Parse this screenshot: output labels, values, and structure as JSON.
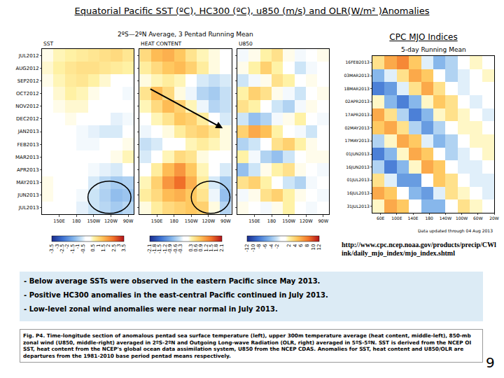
{
  "title": "Equatorial Pacific SST (ºC), HC300 (ºC), u850 (m/s) and OLR(W/m² )Anomalies",
  "figure_subtitle": "2ºS—2ºN Average, 3 Pentad Running Mean",
  "mjo_header": "CPC MJO Indices",
  "mjo_url": "http://www.cpc.ncep.noaa.gov/products/precip/CWlink/daily_mjo_index/mjo_index.shtml",
  "chart_data": [
    {
      "type": "heatmap",
      "title": "SST",
      "x": [
        130,
        150,
        170,
        190,
        210,
        230,
        250,
        270
      ],
      "categories": [
        "JUL2012",
        "AUG2012",
        "SEP2012",
        "OCT2012",
        "NOV2012",
        "DEC2012",
        "JAN2013",
        "FEB2013",
        "MAR2013",
        "APR2013",
        "MAY2013",
        "JUN2013",
        "JUL2013"
      ],
      "values": [
        [
          0.3,
          0.5,
          0.6,
          0.7,
          0.8,
          0.9,
          1.0,
          0.8
        ],
        [
          0.4,
          0.6,
          0.8,
          0.9,
          0.9,
          0.8,
          0.7,
          0.6
        ],
        [
          0.3,
          0.5,
          0.7,
          0.8,
          0.6,
          0.4,
          0.2,
          0.1
        ],
        [
          0.2,
          0.4,
          0.6,
          0.5,
          0.3,
          0.1,
          -0.2,
          -0.3
        ],
        [
          0.2,
          0.3,
          0.4,
          0.4,
          0.2,
          0.1,
          -0.1,
          -0.2
        ],
        [
          0.1,
          0.2,
          0.3,
          0.2,
          0.0,
          -0.2,
          -0.4,
          -0.3
        ],
        [
          0.0,
          0.1,
          -0.1,
          -0.3,
          -0.4,
          -0.5,
          -0.5,
          -0.2
        ],
        [
          0.1,
          0.0,
          -0.2,
          -0.3,
          -0.3,
          -0.2,
          0.1,
          0.3
        ],
        [
          0.1,
          0.1,
          -0.1,
          -0.2,
          -0.2,
          0.0,
          0.3,
          0.5
        ],
        [
          0.2,
          0.2,
          0.0,
          -0.1,
          -0.3,
          -0.4,
          -0.5,
          -0.2
        ],
        [
          0.3,
          0.2,
          0.1,
          -0.2,
          -0.5,
          -0.8,
          -1.0,
          -0.9
        ],
        [
          0.3,
          0.2,
          0.0,
          -0.3,
          -0.6,
          -0.9,
          -1.2,
          -1.1
        ],
        [
          0.2,
          0.1,
          -0.1,
          -0.4,
          -0.6,
          -0.8,
          -1.0,
          -0.8
        ]
      ],
      "xlim": [
        120,
        280
      ],
      "xticks": [
        {
          "value": 150,
          "label": "150E"
        },
        180,
        {
          "value": 210,
          "label": "150W"
        },
        {
          "value": 240,
          "label": "120W"
        },
        {
          "value": 270,
          "label": "90W"
        }
      ],
      "zlim": [
        -3.5,
        3.5
      ],
      "colorbar_ticks": [
        -3.5,
        -3,
        -2.5,
        -2,
        -1.5,
        -1,
        -0.5,
        0.5,
        1,
        1.5,
        2,
        2.5,
        3,
        3.5
      ]
    },
    {
      "type": "heatmap",
      "title": "HEAT CONTENT",
      "tick_labels": "x",
      "x": [
        130,
        150,
        170,
        190,
        210,
        230,
        250,
        270
      ],
      "categories": [
        "JUL2012",
        "AUG2012",
        "SEP2012",
        "OCT2012",
        "NOV2012",
        "DEC2012",
        "JAN2013",
        "FEB2013",
        "MAR2013",
        "APR2013",
        "MAY2013",
        "JUN2013",
        "JUL2013"
      ],
      "values": [
        [
          0.6,
          0.9,
          1.0,
          0.8,
          0.5,
          0.3,
          0.2,
          0.1
        ],
        [
          0.4,
          0.6,
          0.8,
          0.9,
          0.7,
          0.4,
          0.2,
          0.1
        ],
        [
          0.2,
          0.3,
          0.4,
          0.3,
          0.0,
          -0.3,
          -0.4,
          -0.3
        ],
        [
          0.5,
          0.9,
          0.6,
          0.2,
          -0.2,
          -0.5,
          -0.6,
          -0.4
        ],
        [
          0.3,
          0.6,
          0.9,
          0.7,
          0.3,
          -0.2,
          -0.5,
          -0.4
        ],
        [
          0.1,
          0.3,
          0.5,
          0.8,
          0.7,
          0.4,
          0.0,
          -0.3
        ],
        [
          -0.2,
          0.0,
          0.2,
          0.4,
          0.6,
          0.7,
          0.5,
          0.2
        ],
        [
          -0.4,
          -0.3,
          -0.1,
          0.1,
          0.3,
          0.4,
          0.3,
          0.2
        ],
        [
          -0.3,
          -0.1,
          0.3,
          0.6,
          0.5,
          0.2,
          0.0,
          -0.1
        ],
        [
          0.0,
          0.4,
          0.9,
          1.2,
          0.8,
          0.3,
          -0.1,
          -0.3
        ],
        [
          0.3,
          0.7,
          1.2,
          1.5,
          1.0,
          0.4,
          -0.3,
          -0.6
        ],
        [
          0.4,
          0.6,
          0.9,
          1.0,
          0.8,
          0.5,
          -0.2,
          -0.7
        ],
        [
          0.2,
          0.4,
          0.6,
          0.7,
          0.8,
          0.7,
          0.2,
          -0.5
        ]
      ],
      "xlim": [
        120,
        280
      ],
      "xticks": [
        {
          "value": 150,
          "label": "150E"
        },
        180,
        {
          "value": 210,
          "label": "150W"
        },
        {
          "value": 240,
          "label": "120W"
        },
        {
          "value": 270,
          "label": "90W"
        }
      ],
      "zlim": [
        -2.1,
        2.1
      ],
      "colorbar_ticks": [
        -2.1,
        -1.8,
        -1.5,
        -1.2,
        -0.9,
        -0.6,
        -0.3,
        0.3,
        0.6,
        0.9,
        1.2,
        1.5,
        1.8,
        2.1
      ]
    },
    {
      "type": "heatmap",
      "title": "U850",
      "tick_labels": "x",
      "x": [
        130,
        150,
        170,
        190,
        210,
        230,
        250,
        270
      ],
      "categories": [
        "JUL2012",
        "AUG2012",
        "SEP2012",
        "OCT2012",
        "NOV2012",
        "DEC2012",
        "JAN2013",
        "FEB2013",
        "MAR2013",
        "APR2013",
        "MAY2013",
        "JUN2013",
        "JUL2013"
      ],
      "values": [
        [
          -1,
          1,
          2,
          3,
          1,
          -1,
          0,
          1
        ],
        [
          1,
          2,
          4,
          2,
          0,
          -2,
          -1,
          0
        ],
        [
          -2,
          -1,
          1,
          3,
          2,
          0,
          1,
          0
        ],
        [
          2,
          4,
          3,
          1,
          -1,
          -2,
          0,
          1
        ],
        [
          3,
          2,
          0,
          -2,
          -3,
          -1,
          1,
          0
        ],
        [
          -2,
          -4,
          -3,
          -1,
          1,
          2,
          0,
          -1
        ],
        [
          4,
          6,
          5,
          2,
          0,
          -1,
          -2,
          0
        ],
        [
          -3,
          -2,
          0,
          3,
          4,
          2,
          1,
          0
        ],
        [
          2,
          -1,
          -3,
          -4,
          -2,
          0,
          1,
          1
        ],
        [
          -4,
          -2,
          1,
          2,
          3,
          1,
          0,
          -1
        ],
        [
          3,
          4,
          2,
          0,
          -2,
          -3,
          -1,
          0
        ],
        [
          -1,
          1,
          3,
          4,
          2,
          1,
          0,
          -1
        ],
        [
          1,
          0,
          -1,
          1,
          2,
          0,
          -1,
          0
        ]
      ],
      "xlim": [
        120,
        280
      ],
      "xticks": [
        {
          "value": 150,
          "label": "150E"
        },
        180,
        {
          "value": 210,
          "label": "150W"
        },
        {
          "value": 240,
          "label": "120W"
        },
        {
          "value": 270,
          "label": "90W"
        }
      ],
      "zlim": [
        -12,
        12
      ],
      "colorbar_ticks": [
        -12,
        -10,
        -8,
        -6,
        -4,
        -2,
        2,
        4,
        6,
        8,
        10,
        12
      ]
    },
    {
      "type": "heatmap",
      "title": "5-day Running Mean",
      "note": "Data updated through 04 Aug 2013",
      "x": [
        55,
        85,
        115,
        145,
        175,
        205,
        235,
        265,
        295,
        325
      ],
      "categories": [
        "16FEB2013",
        "03MAR2013",
        "18MAR2013",
        "02APR2013",
        "17APR2013",
        "02MAY2013",
        "17MAY2013",
        "01JUN2013",
        "16JUN2013",
        "01JUL2013",
        "16JUL2013",
        "31JUL2013"
      ],
      "values": [
        [
          10,
          20,
          25,
          15,
          -5,
          -15,
          -10,
          0,
          5,
          0
        ],
        [
          -15,
          -5,
          10,
          20,
          15,
          0,
          -10,
          -5,
          0,
          5
        ],
        [
          -25,
          -20,
          -5,
          10,
          20,
          10,
          0,
          -5,
          0,
          0
        ],
        [
          5,
          -15,
          -25,
          -15,
          5,
          15,
          10,
          0,
          -5,
          0
        ],
        [
          20,
          10,
          -10,
          -25,
          -15,
          5,
          10,
          5,
          0,
          -5
        ],
        [
          15,
          20,
          10,
          -10,
          -20,
          -10,
          0,
          5,
          5,
          0
        ],
        [
          -10,
          5,
          20,
          15,
          -5,
          -15,
          -10,
          0,
          5,
          5
        ],
        [
          -25,
          -15,
          5,
          20,
          15,
          0,
          -10,
          -5,
          0,
          5
        ],
        [
          -10,
          -25,
          -15,
          5,
          20,
          15,
          0,
          -5,
          -5,
          0
        ],
        [
          10,
          -5,
          -20,
          -20,
          0,
          15,
          10,
          0,
          -5,
          -5
        ],
        [
          20,
          15,
          0,
          -15,
          -20,
          -5,
          10,
          5,
          0,
          -5
        ],
        [
          5,
          20,
          15,
          0,
          -15,
          -15,
          0,
          10,
          5,
          0
        ]
      ],
      "xlim": [
        40,
        340
      ],
      "xticks": [
        {
          "value": 60,
          "label": "60E"
        },
        {
          "value": 100,
          "label": "100E"
        },
        {
          "value": 140,
          "label": "140E"
        },
        180,
        {
          "value": 220,
          "label": "140W"
        },
        {
          "value": 260,
          "label": "100W"
        },
        {
          "value": 300,
          "label": "60W"
        },
        {
          "value": 340,
          "label": "20W"
        }
      ],
      "zlim": [
        -40,
        40
      ]
    }
  ],
  "bullets": [
    "- Below average SSTs were observed in the eastern Pacific since May 2013.",
    "- Positive HC300 anomalies in the east-central Pacific continued in July 2013.",
    "- Low-level zonal wind anomalies were near normal in July 2013."
  ],
  "caption": "Fig. P4. Time-longitude section of anomalous pentad sea surface temperature (left), upper 300m temperature average (heat content, middle-left), 850-mb zonal wind (U850, middle-right) averaged in 2ºS-2ºN and Outgoing Long-wave Radiation (OLR, right) averaged in 5ºS-5ºN. SST is derived from the NCEP OI SST, heat content from the NCEP's global ocean data assimilation system, U850 from the NCEP CDAS. Anomalies for SST, heat content and U850/OLR are departures from the 1981-2010 base period pentad means respectively.",
  "page_number": "9"
}
